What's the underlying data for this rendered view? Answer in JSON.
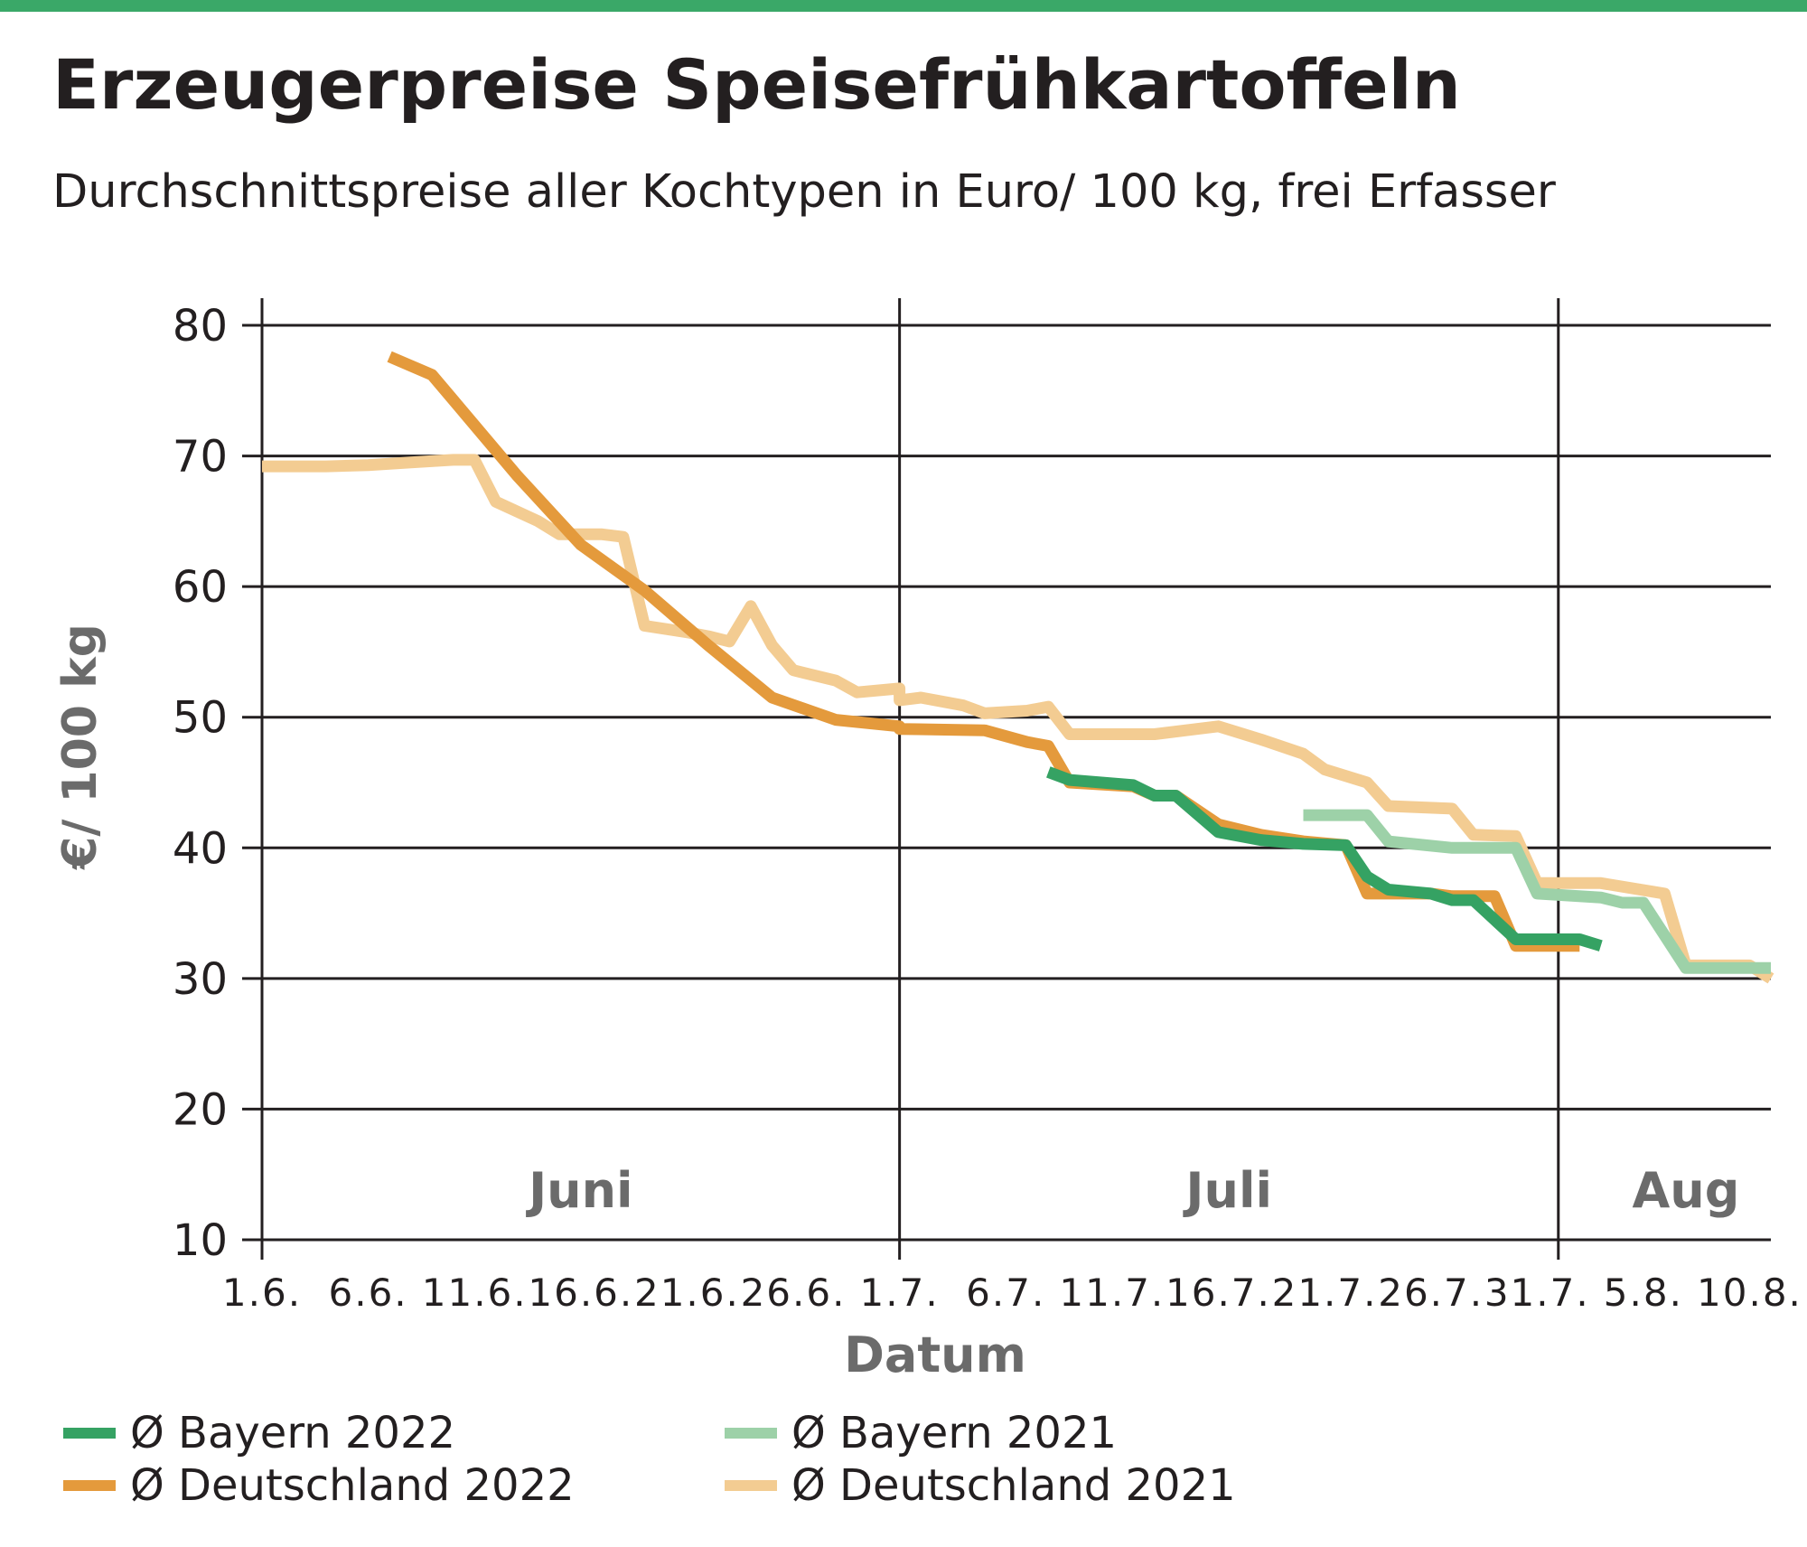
{
  "title": "Erzeugerpreise Speisefrühkartoffeln",
  "subtitle": "Durchschnittspreise aller Kochtypen in Euro/ 100 kg, frei Erfasser",
  "colors": {
    "top_bar": "#3aa868",
    "bayern_2022": "#35a263",
    "deutschland_2022": "#e49a3c",
    "bayern_2021": "#9dd1a8",
    "deutschland_2021": "#f3cc92"
  },
  "chart_data": {
    "type": "line",
    "xlabel": "Datum",
    "ylabel": "€/ 100 kg",
    "ylim": [
      10,
      80
    ],
    "yticks": [
      10,
      20,
      30,
      40,
      50,
      60,
      70,
      80
    ],
    "x_tick_labels": [
      "1.6.",
      "6.6.",
      "11.6.",
      "16.6.",
      "21.6.",
      "26.6.",
      "1.7.",
      "6.7.",
      "11.7.",
      "16.7.",
      "21.7.",
      "26.7.",
      "31.7.",
      "5.8.",
      "10.8."
    ],
    "x_start": "1.6.",
    "x_end": "11.8.",
    "month_labels": [
      {
        "label": "Juni",
        "position": "center of June"
      },
      {
        "label": "Juli",
        "position": "center of July"
      },
      {
        "label": "Aug",
        "position": "start of August"
      }
    ],
    "month_dividers": [
      "1.7.",
      "1.8."
    ],
    "grid": "horizontal lines at every y tick, vertical lines at month boundaries",
    "legend_position": "bottom",
    "series": [
      {
        "name": "Ø Deutschland 2021",
        "color_key": "deutschland_2021",
        "points": [
          [
            "1.6.",
            69.2
          ],
          [
            "4.6.",
            69.2
          ],
          [
            "6.6.",
            69.3
          ],
          [
            "8.6.",
            69.5
          ],
          [
            "10.6.",
            69.7
          ],
          [
            "11.6.",
            69.7
          ],
          [
            "12.6.",
            66.5
          ],
          [
            "14.6.",
            65.0
          ],
          [
            "15.6.",
            64.0
          ],
          [
            "17.6.",
            64.0
          ],
          [
            "18.6.",
            63.8
          ],
          [
            "19.6.",
            57.0
          ],
          [
            "21.6.",
            56.5
          ],
          [
            "22.6.",
            56.2
          ],
          [
            "23.6.",
            55.8
          ],
          [
            "24.6.",
            58.5
          ],
          [
            "25.6.",
            55.5
          ],
          [
            "26.6.",
            53.6
          ],
          [
            "28.6.",
            52.8
          ],
          [
            "29.6.",
            51.9
          ],
          [
            "31.6.",
            52.2
          ],
          [
            "1.7.",
            51.3
          ],
          [
            "2.7.",
            51.5
          ],
          [
            "4.7.",
            50.9
          ],
          [
            "5.7.",
            50.3
          ],
          [
            "7.7.",
            50.5
          ],
          [
            "8.7.",
            50.8
          ],
          [
            "9.7.",
            48.7
          ],
          [
            "13.7.",
            48.7
          ],
          [
            "15.7.",
            49.1
          ],
          [
            "16.7.",
            49.3
          ],
          [
            "18.7.",
            48.3
          ],
          [
            "20.7.",
            47.2
          ],
          [
            "21.7.",
            46.0
          ],
          [
            "23.7.",
            45.0
          ],
          [
            "24.7.",
            43.2
          ],
          [
            "27.7.",
            43.0
          ],
          [
            "28.7.",
            41.0
          ],
          [
            "30.7.",
            40.9
          ],
          [
            "31.7.",
            37.3
          ],
          [
            "34.7.",
            37.3
          ],
          [
            "37.7.",
            36.5
          ],
          [
            "38.7.",
            31.0
          ],
          [
            "41.7.",
            31.0
          ],
          [
            "42.7.",
            30.0
          ]
        ]
      },
      {
        "name": "Ø Deutschland 2022",
        "color_key": "deutschland_2022",
        "points": [
          [
            "7.6.",
            77.6
          ],
          [
            "9.6.",
            76.2
          ],
          [
            "13.6.",
            68.5
          ],
          [
            "16.6.",
            63.2
          ],
          [
            "19.6.",
            59.7
          ],
          [
            "22.6.",
            55.5
          ],
          [
            "25.6.",
            51.5
          ],
          [
            "28.6.",
            49.8
          ],
          [
            "31.6.",
            49.3
          ],
          [
            "1.7.",
            49.1
          ],
          [
            "5.7.",
            49.0
          ],
          [
            "7.7.",
            48.1
          ],
          [
            "8.7.",
            47.8
          ],
          [
            "9.7.",
            45.0
          ],
          [
            "12.7.",
            44.7
          ],
          [
            "13.7.",
            44.0
          ],
          [
            "14.7.",
            44.0
          ],
          [
            "16.7.",
            41.8
          ],
          [
            "18.7.",
            41.0
          ],
          [
            "20.7.",
            40.5
          ],
          [
            "22.7.",
            40.2
          ],
          [
            "23.7.",
            36.5
          ],
          [
            "26.7.",
            36.5
          ],
          [
            "27.7.",
            36.3
          ],
          [
            "29.7.",
            36.3
          ],
          [
            "30.7.",
            32.5
          ],
          [
            "33.7.",
            32.5
          ]
        ]
      },
      {
        "name": "Ø Bayern 2021",
        "color_key": "bayern_2021",
        "points": [
          [
            "20.7.",
            42.5
          ],
          [
            "22.7.",
            42.5
          ],
          [
            "23.7.",
            42.5
          ],
          [
            "24.7.",
            40.5
          ],
          [
            "27.7.",
            40.0
          ],
          [
            "30.7.",
            40.0
          ],
          [
            "31.7.",
            36.5
          ],
          [
            "34.7.",
            36.2
          ],
          [
            "35.7.",
            35.8
          ],
          [
            "36.7.",
            35.8
          ],
          [
            "38.7.",
            30.8
          ],
          [
            "42.7.",
            30.8
          ]
        ]
      },
      {
        "name": "Ø Bayern 2022",
        "color_key": "bayern_2022",
        "points": [
          [
            "8.7.",
            45.8
          ],
          [
            "9.7.",
            45.2
          ],
          [
            "12.7.",
            44.8
          ],
          [
            "13.7.",
            44.0
          ],
          [
            "14.7.",
            44.0
          ],
          [
            "16.7.",
            41.2
          ],
          [
            "18.7.",
            40.6
          ],
          [
            "20.7.",
            40.3
          ],
          [
            "22.7.",
            40.2
          ],
          [
            "23.7.",
            37.8
          ],
          [
            "24.7.",
            36.8
          ],
          [
            "26.7.",
            36.5
          ],
          [
            "27.7.",
            36.0
          ],
          [
            "28.7.",
            36.0
          ],
          [
            "30.7.",
            33.0
          ],
          [
            "31.7.",
            33.0
          ],
          [
            "32.7.",
            33.0
          ],
          [
            "33.7.",
            33.0
          ],
          [
            "34.7.",
            32.5
          ]
        ]
      }
    ]
  },
  "legend": [
    {
      "label": "Ø Bayern 2022",
      "color_key": "bayern_2022"
    },
    {
      "label": "Ø Deutschland 2022",
      "color_key": "deutschland_2022"
    },
    {
      "label": "Ø Bayern 2021",
      "color_key": "bayern_2021"
    },
    {
      "label": "Ø Deutschland 2021",
      "color_key": "deutschland_2021"
    }
  ]
}
